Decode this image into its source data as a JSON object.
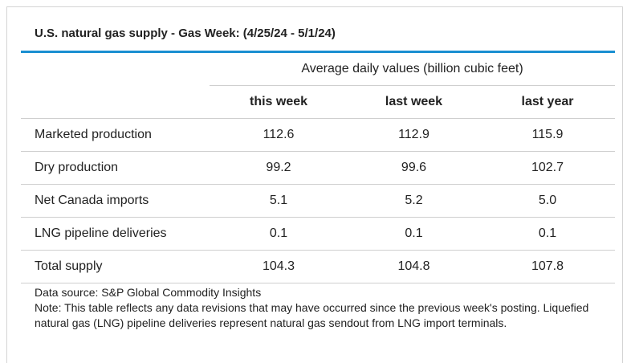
{
  "title": "U.S. natural gas supply - Gas Week: (4/25/24 - 5/1/24)",
  "table": {
    "group_header": "Average daily values (billion cubic feet)",
    "columns": [
      "this week",
      "last week",
      "last year"
    ],
    "rows": [
      {
        "label": "Marketed production",
        "values": [
          "112.6",
          "112.9",
          "115.9"
        ]
      },
      {
        "label": "Dry production",
        "values": [
          "99.2",
          "99.6",
          "102.7"
        ]
      },
      {
        "label": "Net Canada imports",
        "values": [
          "5.1",
          "5.2",
          "5.0"
        ]
      },
      {
        "label": "LNG pipeline deliveries",
        "values": [
          "0.1",
          "0.1",
          "0.1"
        ]
      },
      {
        "label": "Total supply",
        "values": [
          "104.3",
          "104.8",
          "107.8"
        ]
      }
    ]
  },
  "notes": {
    "source": "Data source: S&P Global Commodity Insights",
    "note": "Note: This table reflects any data revisions that may have occurred since the previous week's posting. Liquefied natural gas (LNG) pipeline deliveries represent natural gas sendout from LNG import terminals."
  },
  "colors": {
    "accent_rule": "#1a8fd1",
    "row_divider": "#cfcfcf"
  }
}
